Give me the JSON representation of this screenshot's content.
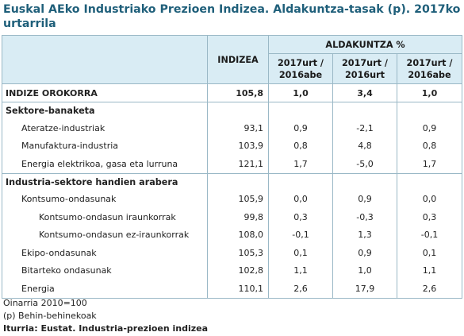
{
  "title": "Euskal AEko Industriako Prezioen Indizea. Aldakuntza-tasak (p). 2017ko urtarrila",
  "header": {
    "indizea": "INDIZEA",
    "aldakuntza": "ALDAKUNTZA %",
    "col1": [
      "2017urt /",
      "2016abe"
    ],
    "col2": [
      "2017urt /",
      "2016urt"
    ],
    "col3": [
      "2017urt /",
      "2016abe"
    ]
  },
  "total": {
    "label": "INDIZE OROKORRA",
    "indizea": "105,8",
    "v1": "1,0",
    "v2": "3,4",
    "v3": "1,0"
  },
  "sections": [
    {
      "title": "Sektore-banaketa",
      "rows": [
        {
          "label": "Ateratze-industriak",
          "indizea": "93,1",
          "v1": "0,9",
          "v2": "-2,1",
          "v3": "0,9",
          "level": 1
        },
        {
          "label": "Manufaktura-industria",
          "indizea": "103,9",
          "v1": "0,8",
          "v2": "4,8",
          "v3": "0,8",
          "level": 1
        },
        {
          "label": "Energia elektrikoa, gasa eta lurruna",
          "indizea": "121,1",
          "v1": "1,7",
          "v2": "-5,0",
          "v3": "1,7",
          "level": 1
        }
      ]
    },
    {
      "title": "Industria-sektore handien arabera",
      "rows": [
        {
          "label": "Kontsumo-ondasunak",
          "indizea": "105,9",
          "v1": "0,0",
          "v2": "0,9",
          "v3": "0,0",
          "level": 1
        },
        {
          "label": "Kontsumo-ondasun iraunkorrak",
          "indizea": "99,8",
          "v1": "0,3",
          "v2": "-0,3",
          "v3": "0,3",
          "level": 2
        },
        {
          "label": "Kontsumo-ondasun ez-iraunkorrak",
          "indizea": "108,0",
          "v1": "-0,1",
          "v2": "1,3",
          "v3": "-0,1",
          "level": 2
        },
        {
          "label": "Ekipo-ondasunak",
          "indizea": "105,3",
          "v1": "0,1",
          "v2": "0,9",
          "v3": "0,1",
          "level": 1
        },
        {
          "label": "Bitarteko ondasunak",
          "indizea": "102,8",
          "v1": "1,1",
          "v2": "1,0",
          "v3": "1,1",
          "level": 1
        },
        {
          "label": "Energia",
          "indizea": "110,1",
          "v1": "2,6",
          "v2": "17,9",
          "v3": "2,6",
          "level": 1
        }
      ]
    }
  ],
  "notes": {
    "base": "Oinarria 2010=100",
    "provisional": "(p) Behin-behinekoak",
    "source": "Iturria: Eustat. Industria-prezioen indizea"
  }
}
